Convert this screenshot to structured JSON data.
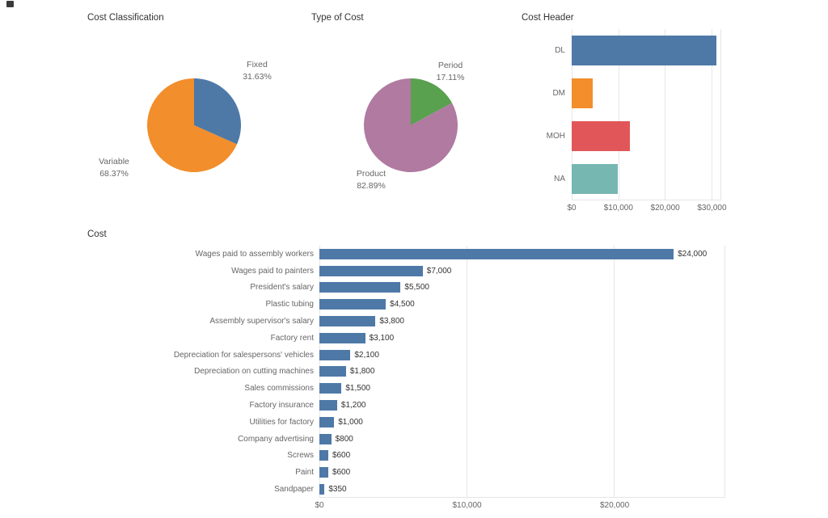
{
  "page": {
    "background": "#ffffff"
  },
  "chart_data": [
    {
      "id": "cost-classification",
      "type": "pie",
      "title": "Cost Classification",
      "slices": [
        {
          "label": "Fixed",
          "pct": 31.63,
          "pct_label": "31.63%",
          "color": "#4e79a7"
        },
        {
          "label": "Variable",
          "pct": 68.37,
          "pct_label": "68.37%",
          "color": "#f28e2b"
        }
      ]
    },
    {
      "id": "type-of-cost",
      "type": "pie",
      "title": "Type of Cost",
      "slices": [
        {
          "label": "Period",
          "pct": 17.11,
          "pct_label": "17.11%",
          "color": "#59a14f"
        },
        {
          "label": "Product",
          "pct": 82.89,
          "pct_label": "82.89%",
          "color": "#b07aa1"
        }
      ]
    },
    {
      "id": "cost-header",
      "type": "bar",
      "orientation": "horizontal",
      "title": "Cost Header",
      "categories": [
        "DL",
        "DM",
        "MOH",
        "NA"
      ],
      "values": [
        31000,
        4500,
        12450,
        9900
      ],
      "colors": [
        "#4e79a7",
        "#f28e2b",
        "#e15759",
        "#76b7b2"
      ],
      "xlim": [
        0,
        32000
      ],
      "grid": true,
      "x_ticks": [
        {
          "value": 0,
          "label": "$0"
        },
        {
          "value": 10000,
          "label": "$10,000"
        },
        {
          "value": 20000,
          "label": "$20,000"
        },
        {
          "value": 30000,
          "label": "$30,000"
        }
      ]
    },
    {
      "id": "cost",
      "type": "bar",
      "orientation": "horizontal",
      "title": "Cost",
      "categories": [
        "Wages paid to assembly workers",
        "Wages paid to painters",
        "President's salary",
        "Plastic tubing",
        "Assembly supervisor's salary",
        "Factory rent",
        "Depreciation for salespersons' vehicles",
        "Depreciation on cutting machines",
        "Sales commissions",
        "Factory insurance",
        "Utilities for factory",
        "Company advertising",
        "Screws",
        "Paint",
        "Sandpaper"
      ],
      "values": [
        24000,
        7000,
        5500,
        4500,
        3800,
        3100,
        2100,
        1800,
        1500,
        1200,
        1000,
        800,
        600,
        600,
        350
      ],
      "value_labels": [
        "$24,000",
        "$7,000",
        "$5,500",
        "$4,500",
        "$3,800",
        "$3,100",
        "$2,100",
        "$1,800",
        "$1,500",
        "$1,200",
        "$1,000",
        "$800",
        "$600",
        "$600",
        "$350"
      ],
      "bar_color": "#4e79a7",
      "xlim": [
        0,
        27500
      ],
      "grid": true,
      "x_ticks": [
        {
          "value": 0,
          "label": "$0"
        },
        {
          "value": 10000,
          "label": "$10,000"
        },
        {
          "value": 20000,
          "label": "$20,000"
        }
      ]
    }
  ]
}
